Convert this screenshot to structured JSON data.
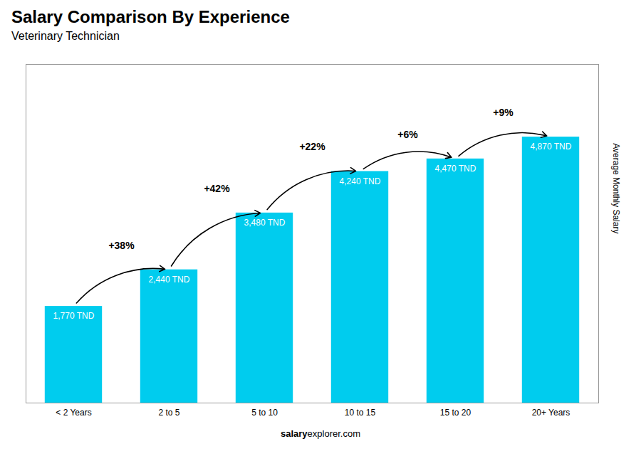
{
  "chart_data": {
    "type": "bar",
    "title": "Salary Comparison By Experience",
    "subtitle": "Veterinary Technician",
    "categories": [
      "< 2 Years",
      "2 to 5",
      "5 to 10",
      "10 to 15",
      "15 to 20",
      "20+ Years"
    ],
    "values": [
      1770,
      2440,
      3480,
      4240,
      4470,
      4870
    ],
    "value_labels": [
      "1,770 TND",
      "2,440 TND",
      "3,480 TND",
      "4,240 TND",
      "4,470 TND",
      "4,870 TND"
    ],
    "data_labels": true,
    "annotations": [
      "+38%",
      "+42%",
      "+22%",
      "+6%",
      "+9%"
    ],
    "ylabel": "Average Monthly Salary",
    "footer": [
      "salary",
      "explorer.com"
    ],
    "color": "#00ccee",
    "ylim": [
      0,
      6200
    ],
    "tick_labels": "x"
  }
}
